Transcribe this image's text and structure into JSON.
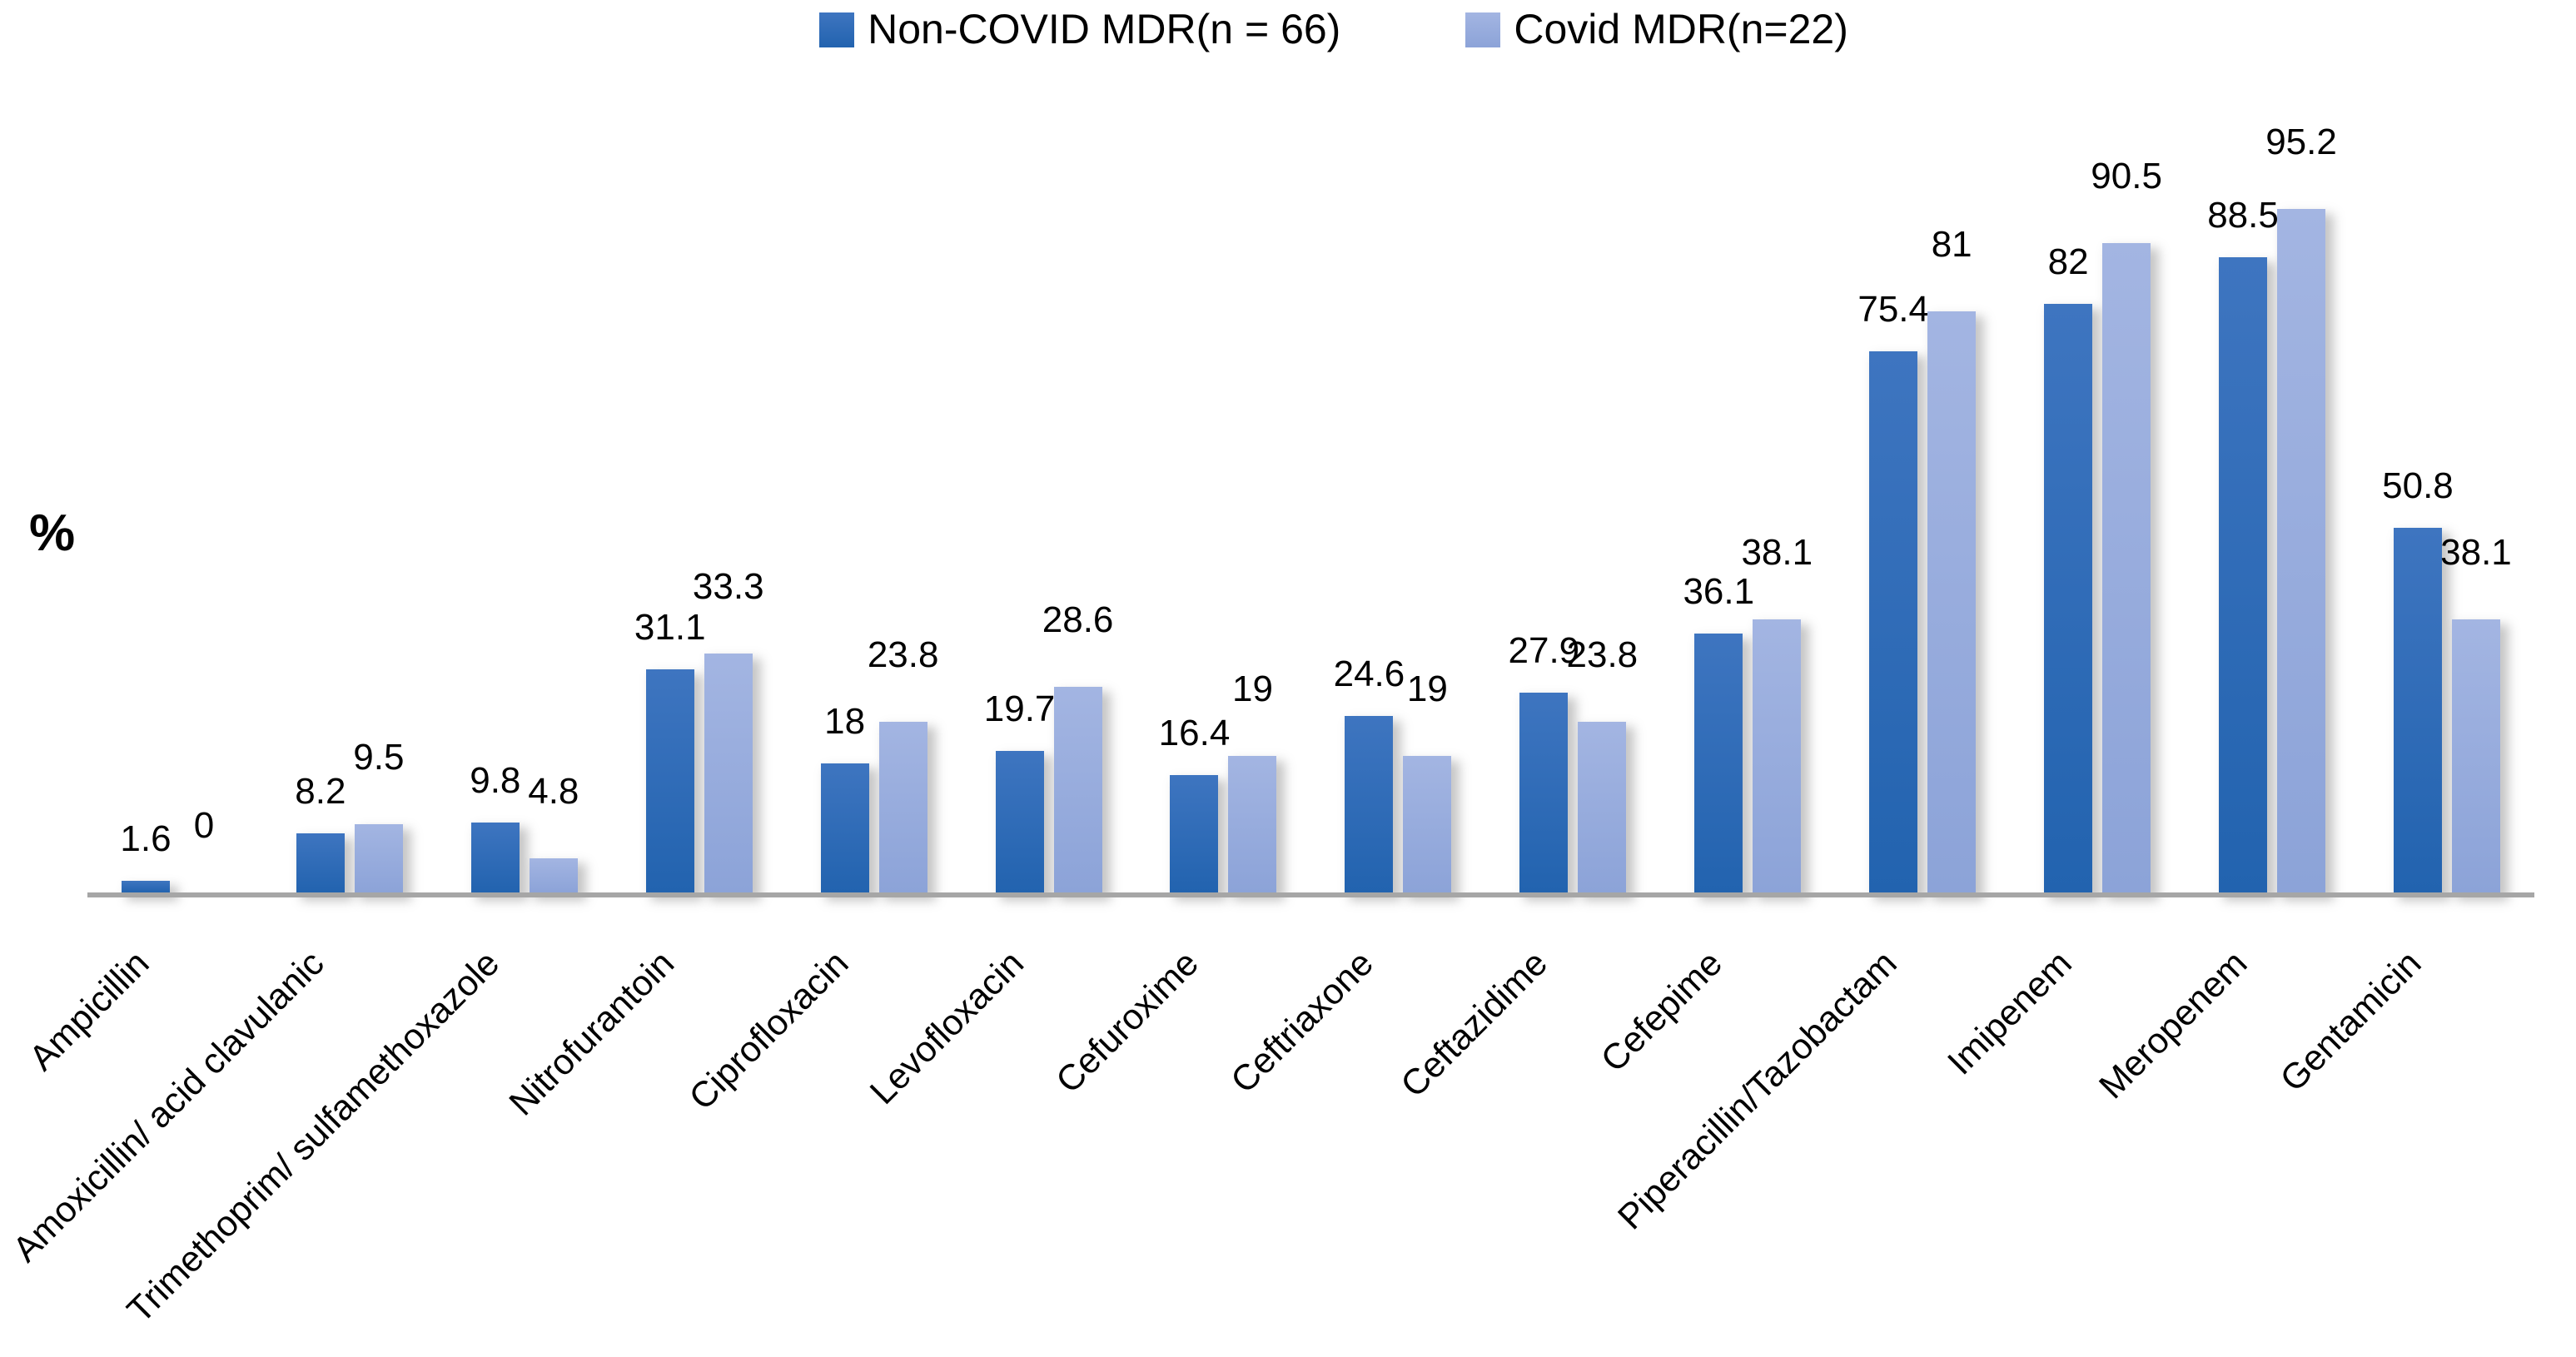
{
  "ylabel_text": "%",
  "chart_data": {
    "type": "bar",
    "title": "",
    "xlabel": "",
    "ylabel": "%",
    "ylim": [
      0,
      100
    ],
    "grid": false,
    "legend_position": "top",
    "axis_color": "#a6a6a6",
    "categories": [
      "Ampicillin",
      "Amoxicillin/ acid clavulanic",
      "Trimethoprim/ sulfamethoxazole",
      "Nitrofurantoin",
      "Ciprofloxacin",
      "Levofloxacin",
      "Cefuroxime",
      "Ceftriaxone",
      "Ceftazidime",
      "Cefepime",
      "Piperacillin/Tazobactam",
      "Imipenem",
      "Meropenem",
      "Gentamicin"
    ],
    "series": [
      {
        "name": "Non-COVID MDR(n = 66)",
        "values": [
          1.6,
          8.2,
          9.8,
          31.1,
          18,
          19.7,
          16.4,
          24.6,
          27.9,
          36.1,
          75.4,
          82,
          88.5,
          50.8
        ],
        "color_top": "#3e75c0",
        "color_bottom": "#2263af"
      },
      {
        "name": "Covid MDR(n=22)",
        "values": [
          0,
          9.5,
          4.8,
          33.3,
          23.8,
          28.6,
          19,
          19,
          23.8,
          38.1,
          81,
          90.5,
          95.2,
          38.1
        ],
        "color_top": "#a3b5e2",
        "color_bottom": "#8ca3d8"
      }
    ]
  }
}
